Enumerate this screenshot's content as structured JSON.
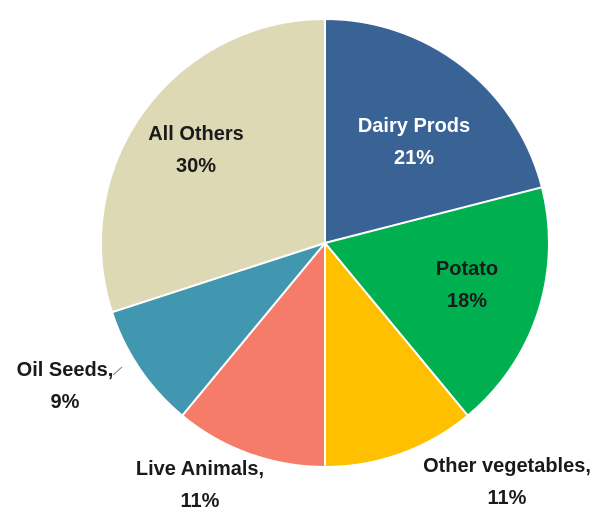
{
  "chart_data": {
    "type": "pie",
    "title": "",
    "start_angle_deg": 0,
    "direction": "clockwise",
    "legend": "none",
    "data_labels": "inside/outside with category name and percent",
    "slices": [
      {
        "name": "Dairy Prods",
        "value": 21,
        "label_line1": "Dairy Prods",
        "label_line2": "21%",
        "color": "#3A6395",
        "label_color": "#ffffff",
        "label_style": "inside"
      },
      {
        "name": "Potato",
        "value": 18,
        "label_line1": "Potato",
        "label_line2": "18%",
        "color": "#00B050",
        "label_color": "#1a1a1a",
        "label_style": "inside"
      },
      {
        "name": "Other vegetables",
        "value": 11,
        "label_line1": "Other vegetables,",
        "label_line2": "11%",
        "color": "#FFC000",
        "label_color": "#1a1a1a",
        "label_style": "outside"
      },
      {
        "name": "Live Animals",
        "value": 11,
        "label_line1": "Live Animals,",
        "label_line2": "11%",
        "color": "#F47C68",
        "label_color": "#1a1a1a",
        "label_style": "outside"
      },
      {
        "name": "Oil Seeds",
        "value": 9,
        "label_line1": "Oil Seeds,",
        "label_line2": "9%",
        "color": "#4197B0",
        "label_color": "#1a1a1a",
        "label_style": "outside"
      },
      {
        "name": "All Others",
        "value": 30,
        "label_line1": "All Others",
        "label_line2": "30%",
        "color": "#DDD9B4",
        "label_color": "#1a1a1a",
        "label_style": "inside"
      }
    ]
  }
}
